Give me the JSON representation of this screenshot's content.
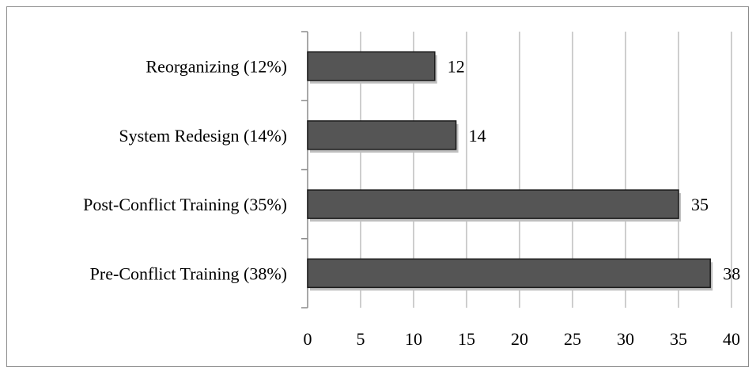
{
  "chart_data": {
    "type": "bar",
    "orientation": "horizontal",
    "categories": [
      "Reorganizing (12%)",
      "System Redesign (14%)",
      "Post-Conflict Training (35%)",
      "Pre-Conflict Training (38%)"
    ],
    "values": [
      12,
      14,
      35,
      38
    ],
    "data_labels": [
      "12",
      "14",
      "35",
      "38"
    ],
    "x_ticks": [
      "0",
      "5",
      "10",
      "15",
      "20",
      "25",
      "30",
      "35",
      "40"
    ],
    "xlim": [
      0,
      40
    ],
    "grid": true,
    "legend": "none",
    "title": "",
    "xlabel": "",
    "ylabel": "",
    "colors": {
      "bar_fill": "#555555",
      "bar_stroke": "#1a1a1a",
      "grid": "#b3b3b3",
      "axis": "#8c8c8c",
      "shadow": "#bfbfbf"
    }
  }
}
